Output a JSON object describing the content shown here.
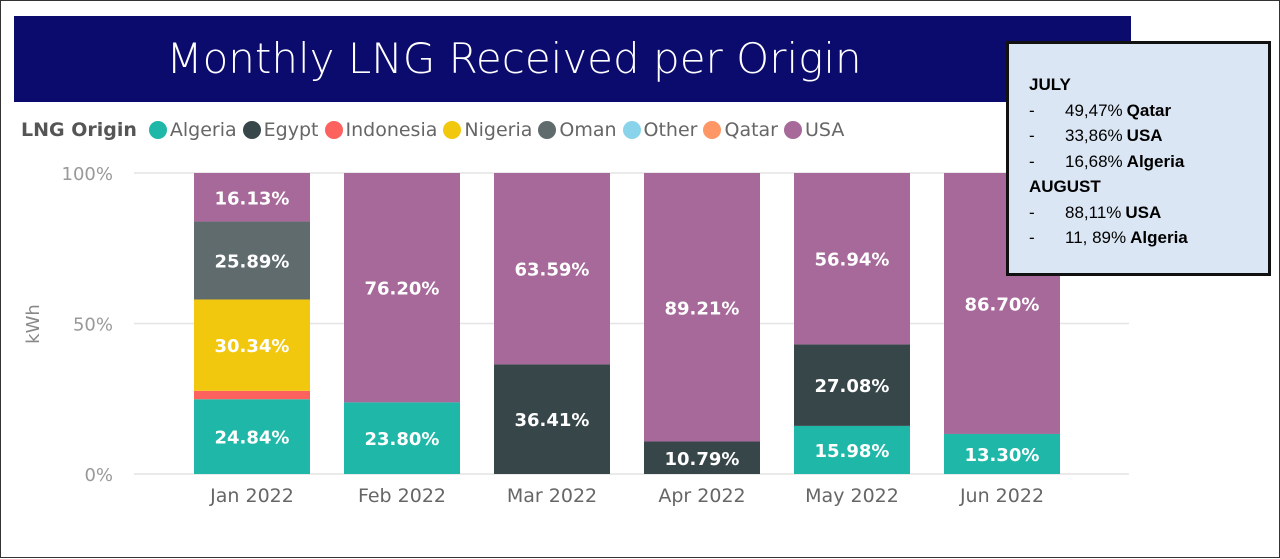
{
  "chart_data": {
    "type": "bar",
    "stacked": true,
    "title": "Monthly LNG Received per Origin",
    "ylabel": "kWh",
    "xlabel": "",
    "ylim": [
      0,
      100
    ],
    "yticks": [
      "0%",
      "50%",
      "100%"
    ],
    "legend_title": "LNG Origin",
    "legend_position": "top-left",
    "categories": [
      "Jan 2022",
      "Feb 2022",
      "Mar 2022",
      "Apr 2022",
      "May 2022",
      "Jun 2022"
    ],
    "series": [
      {
        "name": "Algeria",
        "color": "#1fb8a8",
        "values": [
          24.84,
          23.8,
          0,
          0,
          15.98,
          13.3
        ]
      },
      {
        "name": "Egypt",
        "color": "#374649",
        "values": [
          0,
          0,
          36.41,
          10.79,
          27.08,
          0
        ]
      },
      {
        "name": "Indonesia",
        "color": "#fd625e",
        "values": [
          2.8,
          0,
          0,
          0,
          0,
          0
        ]
      },
      {
        "name": "Nigeria",
        "color": "#f2c80f",
        "values": [
          30.34,
          0,
          0,
          0,
          0,
          0
        ]
      },
      {
        "name": "Oman",
        "color": "#5f6b6d",
        "values": [
          25.89,
          0,
          0,
          0,
          0,
          0
        ]
      },
      {
        "name": "Other",
        "color": "#8ad4eb",
        "values": [
          0,
          0,
          0,
          0,
          0,
          0
        ]
      },
      {
        "name": "Qatar",
        "color": "#fe9666",
        "values": [
          0,
          0,
          0,
          0,
          0,
          0
        ]
      },
      {
        "name": "USA",
        "color": "#a66999",
        "values": [
          16.13,
          76.2,
          63.59,
          89.21,
          56.94,
          86.7
        ]
      }
    ]
  },
  "note": {
    "sections": [
      {
        "heading": "JULY",
        "rows": [
          {
            "dash": "-",
            "value": "49,47%",
            "label": "Qatar"
          },
          {
            "dash": "-",
            "value": "33,86%",
            "label": "USA"
          },
          {
            "dash": "-",
            "value": "16,68%",
            "label": "Algeria"
          }
        ]
      },
      {
        "heading": "AUGUST",
        "rows": [
          {
            "dash": "-",
            "value": "88,11%",
            "label": "USA"
          },
          {
            "dash": "-",
            "value": "11, 89%",
            "label": "Algeria"
          }
        ]
      }
    ]
  }
}
